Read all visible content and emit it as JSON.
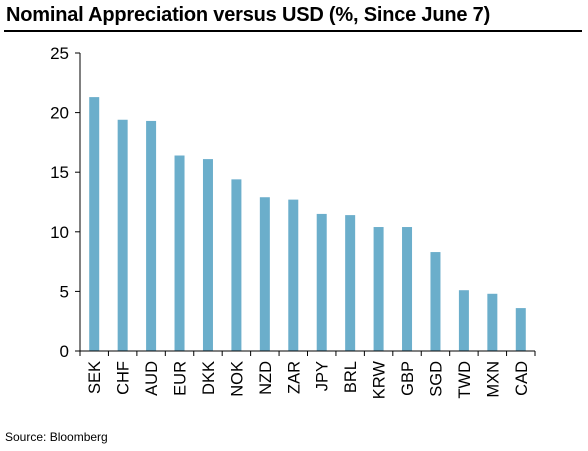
{
  "title": "Nominal Appreciation versus USD (%, Since June 7)",
  "source": "Source: Bloomberg",
  "chart_data": {
    "type": "bar",
    "title": "Nominal Appreciation versus USD (%, Since June 7)",
    "xlabel": "",
    "ylabel": "",
    "ylim": [
      0,
      25
    ],
    "yticks": [
      "0",
      "5",
      "10",
      "15",
      "20",
      "25"
    ],
    "grid": false,
    "legend": "none",
    "bar_color": "#6BAECB",
    "categories": [
      "SEK",
      "CHF",
      "AUD",
      "EUR",
      "DKK",
      "NOK",
      "NZD",
      "ZAR",
      "JPY",
      "BRL",
      "KRW",
      "GBP",
      "SGD",
      "TWD",
      "MXN",
      "CAD"
    ],
    "values": [
      21.3,
      19.4,
      19.3,
      16.4,
      16.1,
      14.4,
      12.9,
      12.7,
      11.5,
      11.4,
      10.4,
      10.4,
      8.3,
      5.1,
      4.8,
      3.6
    ]
  }
}
